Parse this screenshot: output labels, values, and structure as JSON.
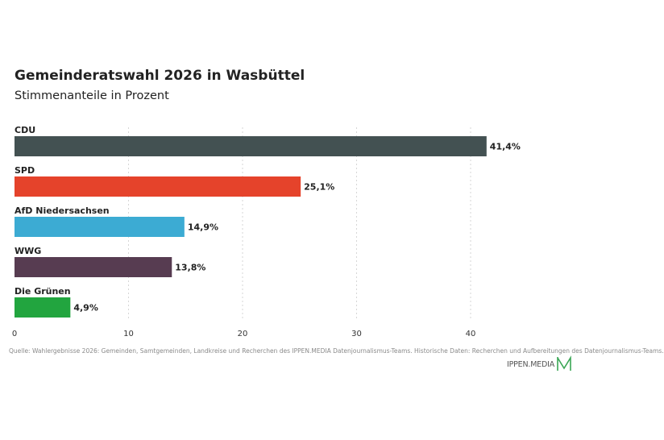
{
  "header": {
    "title": "Gemeinderatswahl 2026 in Wasbüttel",
    "subtitle": "Stimmenanteile in Prozent"
  },
  "chart_data": {
    "type": "bar",
    "orientation": "horizontal",
    "title": "Gemeinderatswahl 2026 in Wasbüttel",
    "subtitle": "Stimmenanteile in Prozent",
    "categories": [
      "CDU",
      "SPD",
      "AfD Niedersachsen",
      "WWG",
      "Die Grünen"
    ],
    "values": [
      41.4,
      25.1,
      14.9,
      13.8,
      4.9
    ],
    "value_labels": [
      "41,4%",
      "25,1%",
      "14,9%",
      "13,8%",
      "4,9%"
    ],
    "colors": [
      "#435152",
      "#e5432b",
      "#3cabd3",
      "#573c51",
      "#22a53f"
    ],
    "xlim": [
      0,
      50
    ],
    "xticks": [
      0,
      10,
      20,
      30,
      40
    ],
    "xtick_labels": [
      "0",
      "10",
      "20",
      "30",
      "40"
    ],
    "grid": "vertical dotted",
    "legend": "none"
  },
  "footer": {
    "source": "Quelle: Wahlergebnisse 2026: Gemeinden, Samtgemeinden, Landkreise und Recherchen des IPPEN.MEDIA Datenjournalismus-Teams. Historische Daten: Recherchen und Aufbereitungen des Datenjournalismus-Teams.",
    "logo_text": "IPPEN.MEDIA",
    "logo_color": "#3aa655",
    "logo_icon": "ippen-media-m-logo"
  }
}
